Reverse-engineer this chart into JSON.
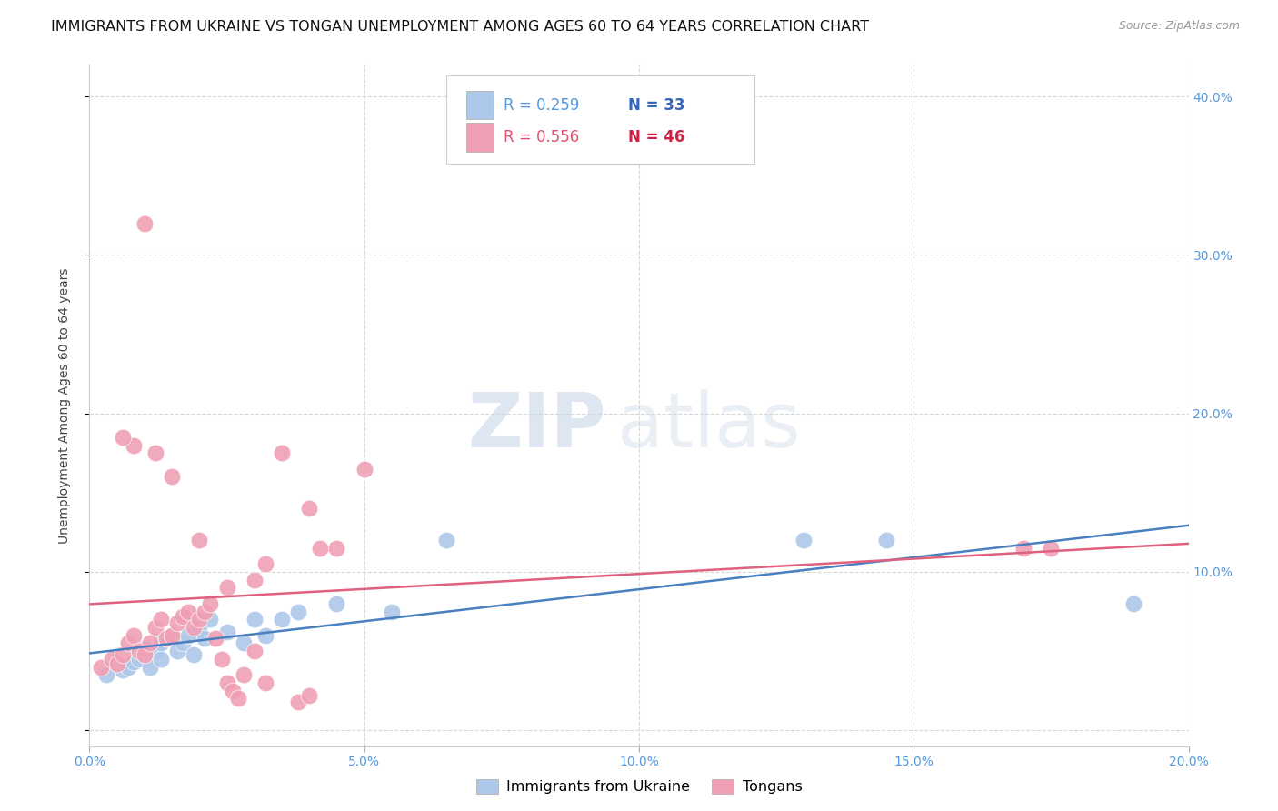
{
  "title": "IMMIGRANTS FROM UKRAINE VS TONGAN UNEMPLOYMENT AMONG AGES 60 TO 64 YEARS CORRELATION CHART",
  "source": "Source: ZipAtlas.com",
  "ylabel": "Unemployment Among Ages 60 to 64 years",
  "xlim": [
    0.0,
    0.2
  ],
  "ylim": [
    -0.01,
    0.42
  ],
  "xticks": [
    0.0,
    0.05,
    0.1,
    0.15,
    0.2
  ],
  "yticks": [
    0.0,
    0.1,
    0.2,
    0.3,
    0.4
  ],
  "background_color": "#ffffff",
  "grid_color": "#d8d8d8",
  "ukraine_color": "#adc8e8",
  "tongan_color": "#f0a0b5",
  "ukraine_line_color": "#4a7fc0",
  "tongan_line_color": "#e06080",
  "ukraine_R": 0.259,
  "ukraine_N": 33,
  "tongan_R": 0.556,
  "tongan_N": 46,
  "ukraine_scatter_x": [
    0.003,
    0.005,
    0.006,
    0.007,
    0.008,
    0.009,
    0.01,
    0.01,
    0.011,
    0.012,
    0.013,
    0.013,
    0.014,
    0.015,
    0.016,
    0.017,
    0.018,
    0.019,
    0.02,
    0.021,
    0.022,
    0.025,
    0.028,
    0.03,
    0.032,
    0.035,
    0.038,
    0.045,
    0.055,
    0.065,
    0.13,
    0.145,
    0.19
  ],
  "ukraine_scatter_y": [
    0.035,
    0.042,
    0.038,
    0.04,
    0.043,
    0.045,
    0.048,
    0.052,
    0.04,
    0.05,
    0.055,
    0.045,
    0.058,
    0.06,
    0.05,
    0.055,
    0.06,
    0.048,
    0.065,
    0.058,
    0.07,
    0.062,
    0.055,
    0.07,
    0.06,
    0.07,
    0.075,
    0.08,
    0.075,
    0.12,
    0.12,
    0.12,
    0.08
  ],
  "tongan_scatter_x": [
    0.002,
    0.004,
    0.005,
    0.006,
    0.007,
    0.008,
    0.009,
    0.01,
    0.011,
    0.012,
    0.013,
    0.014,
    0.015,
    0.016,
    0.017,
    0.018,
    0.019,
    0.02,
    0.021,
    0.022,
    0.023,
    0.024,
    0.025,
    0.026,
    0.027,
    0.028,
    0.03,
    0.032,
    0.025,
    0.03,
    0.032,
    0.035,
    0.038,
    0.04,
    0.04,
    0.02,
    0.015,
    0.012,
    0.01,
    0.008,
    0.006,
    0.042,
    0.045,
    0.05,
    0.17,
    0.175
  ],
  "tongan_scatter_y": [
    0.04,
    0.045,
    0.042,
    0.048,
    0.055,
    0.06,
    0.05,
    0.048,
    0.055,
    0.065,
    0.07,
    0.058,
    0.06,
    0.068,
    0.072,
    0.075,
    0.065,
    0.07,
    0.075,
    0.08,
    0.058,
    0.045,
    0.03,
    0.025,
    0.02,
    0.035,
    0.05,
    0.03,
    0.09,
    0.095,
    0.105,
    0.175,
    0.018,
    0.022,
    0.14,
    0.12,
    0.16,
    0.175,
    0.32,
    0.18,
    0.185,
    0.115,
    0.115,
    0.165,
    0.115,
    0.115
  ],
  "watermark_zip": "ZIP",
  "watermark_atlas": "atlas",
  "title_fontsize": 11.5,
  "source_fontsize": 9,
  "label_fontsize": 10,
  "tick_fontsize": 10,
  "legend_fontsize": 12
}
